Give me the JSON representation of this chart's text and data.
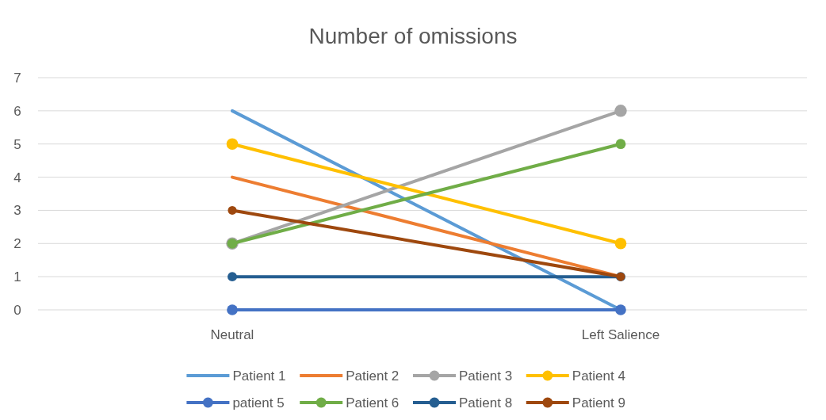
{
  "chart_data": {
    "type": "line",
    "title": "Number of omissions",
    "categories": [
      "Neutral",
      "Left Salience"
    ],
    "ylim": [
      0,
      7
    ],
    "yticks": [
      0,
      1,
      2,
      3,
      4,
      5,
      6,
      7
    ],
    "grid": "y",
    "legend": "bottom",
    "marker": "circle",
    "series": [
      {
        "name": "Patient 1",
        "color": "#5b9bd5",
        "values": [
          6,
          0
        ],
        "marker": "none"
      },
      {
        "name": "Patient 2",
        "color": "#ed7d31",
        "values": [
          4,
          1
        ],
        "marker": "none"
      },
      {
        "name": "Patient 3",
        "color": "#a5a5a5",
        "values": [
          2,
          6
        ]
      },
      {
        "name": "Patient 4",
        "color": "#ffc000",
        "values": [
          5,
          2
        ]
      },
      {
        "name": "patient 5",
        "color": "#4472c4",
        "values": [
          0,
          0
        ]
      },
      {
        "name": "Patient 6",
        "color": "#70ad47",
        "values": [
          2,
          5
        ]
      },
      {
        "name": "Patient 8",
        "color": "#255e91",
        "values": [
          1,
          1
        ]
      },
      {
        "name": "Patient 9",
        "color": "#9e480e",
        "values": [
          3,
          1
        ]
      }
    ]
  }
}
